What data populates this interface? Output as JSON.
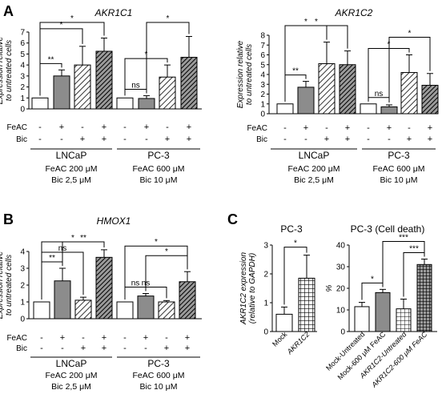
{
  "chart_data": [
    {
      "panel": "A",
      "type": "bar",
      "title": "AKR1C1",
      "ylabel": [
        "Expression relative",
        "to untreated cells"
      ],
      "ylim": [
        0,
        7
      ],
      "yticks": [
        0,
        1,
        2,
        3,
        4,
        5,
        6,
        7
      ],
      "rows": [
        "FeAC",
        "Bic"
      ],
      "bars": [
        {
          "group": "LNCaP",
          "feac": "-",
          "bic": "-",
          "value": 1.0,
          "err": 0,
          "fill": "white"
        },
        {
          "group": "LNCaP",
          "feac": "+",
          "bic": "-",
          "value": 3.0,
          "err": 0.55,
          "fill": "gray"
        },
        {
          "group": "LNCaP",
          "feac": "-",
          "bic": "+",
          "value": 4.0,
          "err": 1.7,
          "fill": "hatch-light"
        },
        {
          "group": "LNCaP",
          "feac": "+",
          "bic": "+",
          "value": 5.25,
          "err": 1.2,
          "fill": "hatch-dark"
        },
        {
          "group": "PC-3",
          "feac": "-",
          "bic": "-",
          "value": 1.0,
          "err": 0,
          "fill": "white"
        },
        {
          "group": "PC-3",
          "feac": "+",
          "bic": "-",
          "value": 0.95,
          "err": 0.25,
          "fill": "gray"
        },
        {
          "group": "PC-3",
          "feac": "-",
          "bic": "+",
          "value": 2.9,
          "err": 1.1,
          "fill": "hatch-light"
        },
        {
          "group": "PC-3",
          "feac": "+",
          "bic": "+",
          "value": 4.7,
          "err": 1.9,
          "fill": "hatch-dark"
        }
      ],
      "significance": [
        {
          "from": 0,
          "to": 1,
          "label": "**"
        },
        {
          "from": 0,
          "to": 2,
          "label": "*"
        },
        {
          "from": 0,
          "to": 3,
          "label": "*"
        },
        {
          "from": 4,
          "to": 5,
          "label": "ns"
        },
        {
          "from": 4,
          "to": 6,
          "label": "*"
        },
        {
          "from": 5,
          "to": 7,
          "label": "*"
        }
      ],
      "groups": [
        {
          "name": "LNCaP",
          "conditions": [
            "FeAC 200 μM",
            "Bic  2,5 μM"
          ]
        },
        {
          "name": "PC-3",
          "conditions": [
            "FeAC 600 μM",
            "Bic   10 μM"
          ]
        }
      ]
    },
    {
      "type": "bar",
      "title": "AKR1C2",
      "ylabel": [
        "Expression relative",
        "to untreated cells"
      ],
      "ylim": [
        0,
        8
      ],
      "yticks": [
        0,
        1,
        2,
        3,
        4,
        5,
        6,
        7,
        8
      ],
      "rows": [
        "FeAC",
        "Bic"
      ],
      "bars": [
        {
          "group": "LNCaP",
          "feac": "-",
          "bic": "-",
          "value": 1.0,
          "err": 0,
          "fill": "white"
        },
        {
          "group": "LNCaP",
          "feac": "+",
          "bic": "-",
          "value": 2.7,
          "err": 0.6,
          "fill": "gray"
        },
        {
          "group": "LNCaP",
          "feac": "-",
          "bic": "+",
          "value": 5.1,
          "err": 2.2,
          "fill": "hatch-light"
        },
        {
          "group": "LNCaP",
          "feac": "+",
          "bic": "+",
          "value": 5.0,
          "err": 1.4,
          "fill": "hatch-dark"
        },
        {
          "group": "PC-3",
          "feac": "-",
          "bic": "-",
          "value": 1.0,
          "err": 0,
          "fill": "white"
        },
        {
          "group": "PC-3",
          "feac": "+",
          "bic": "-",
          "value": 0.7,
          "err": 0.2,
          "fill": "gray"
        },
        {
          "group": "PC-3",
          "feac": "-",
          "bic": "+",
          "value": 4.2,
          "err": 1.8,
          "fill": "hatch-light"
        },
        {
          "group": "PC-3",
          "feac": "+",
          "bic": "+",
          "value": 2.9,
          "err": 1.2,
          "fill": "hatch-dark"
        }
      ],
      "significance": [
        {
          "from": 0,
          "to": 1,
          "label": "**"
        },
        {
          "from": 0,
          "to": 2,
          "label": "*"
        },
        {
          "from": 0,
          "to": 3,
          "label": "*"
        },
        {
          "from": 4,
          "to": 5,
          "label": "ns"
        },
        {
          "from": 4,
          "to": 6,
          "label": "*"
        },
        {
          "from": 5,
          "to": 7,
          "label": "*"
        }
      ],
      "groups": [
        {
          "name": "LNCaP",
          "conditions": [
            "FeAC 200 μM",
            "Bic  2,5 μM"
          ]
        },
        {
          "name": "PC-3",
          "conditions": [
            "FeAC 600 μM",
            "Bic   10 μM"
          ]
        }
      ]
    },
    {
      "panel": "B",
      "type": "bar",
      "title": "HMOX1",
      "ylabel": [
        "Expression relative",
        "to untreated cells"
      ],
      "ylim": [
        0,
        4
      ],
      "yticks": [
        0,
        1,
        2,
        3,
        4
      ],
      "rows": [
        "FeAC",
        "Bic"
      ],
      "bars": [
        {
          "group": "LNCaP",
          "feac": "-",
          "bic": "-",
          "value": 1.0,
          "err": 0,
          "fill": "white"
        },
        {
          "group": "LNCaP",
          "feac": "+",
          "bic": "-",
          "value": 2.25,
          "err": 0.75,
          "fill": "gray"
        },
        {
          "group": "LNCaP",
          "feac": "-",
          "bic": "+",
          "value": 1.1,
          "err": 0.18,
          "fill": "hatch-light"
        },
        {
          "group": "LNCaP",
          "feac": "+",
          "bic": "+",
          "value": 3.65,
          "err": 0.45,
          "fill": "hatch-dark"
        },
        {
          "group": "PC-3",
          "feac": "-",
          "bic": "-",
          "value": 1.0,
          "err": 0,
          "fill": "white"
        },
        {
          "group": "PC-3",
          "feac": "+",
          "bic": "-",
          "value": 1.35,
          "err": 0.15,
          "fill": "gray"
        },
        {
          "group": "PC-3",
          "feac": "-",
          "bic": "+",
          "value": 1.0,
          "err": 0.08,
          "fill": "hatch-light"
        },
        {
          "group": "PC-3",
          "feac": "+",
          "bic": "+",
          "value": 2.2,
          "err": 0.6,
          "fill": "hatch-dark"
        }
      ],
      "significance": [
        {
          "from": 0,
          "to": 1,
          "label": "**"
        },
        {
          "from": 0,
          "to": 2,
          "label": "ns"
        },
        {
          "from": 1,
          "to": 3,
          "label": "**"
        },
        {
          "from": 0,
          "to": 3,
          "label": "*"
        },
        {
          "from": 4,
          "to": 5,
          "label": "ns"
        },
        {
          "from": 4,
          "to": 6,
          "label": "ns"
        },
        {
          "from": 5,
          "to": 7,
          "label": "*"
        },
        {
          "from": 4,
          "to": 7,
          "label": "*"
        }
      ],
      "groups": [
        {
          "name": "LNCaP",
          "conditions": [
            "FeAC 200 μM",
            "Bic  2,5 μM"
          ]
        },
        {
          "name": "PC-3",
          "conditions": [
            "FeAC 600 μM",
            "Bic   10 μM"
          ]
        }
      ]
    },
    {
      "panel": "C",
      "type": "bar",
      "title": "PC-3",
      "ylabel": [
        "AKR1C2 expression",
        "(relative to GAPDH)"
      ],
      "ylim": [
        0,
        3
      ],
      "yticks": [
        0,
        1,
        2,
        3
      ],
      "categories": [
        "Mock",
        "AKR1C2"
      ],
      "bars": [
        {
          "value": 0.6,
          "err": 0.25,
          "fill": "white"
        },
        {
          "value": 1.85,
          "err": 0.8,
          "fill": "grid"
        }
      ],
      "significance": [
        {
          "from": 0,
          "to": 1,
          "label": "*"
        }
      ]
    },
    {
      "type": "bar",
      "title": "PC-3 (Cell death)",
      "ylabel": [
        "%"
      ],
      "ylim": [
        0,
        40
      ],
      "yticks": [
        0,
        10,
        20,
        30,
        40
      ],
      "categories": [
        "Mock-Untreated",
        "Mock-600 μM FeAC",
        "AKR1C2-Untreated",
        "AKR1C2-600 μM FeAC"
      ],
      "bars": [
        {
          "value": 11.5,
          "err": 2.0,
          "fill": "white"
        },
        {
          "value": 18.0,
          "err": 1.5,
          "fill": "gray"
        },
        {
          "value": 10.5,
          "err": 4.5,
          "fill": "grid-light"
        },
        {
          "value": 31.0,
          "err": 2.5,
          "fill": "grid-dark"
        }
      ],
      "significance": [
        {
          "from": 0,
          "to": 1,
          "label": "*"
        },
        {
          "from": 2,
          "to": 3,
          "label": "***"
        },
        {
          "from": 1,
          "to": 3,
          "label": "***"
        }
      ]
    }
  ]
}
